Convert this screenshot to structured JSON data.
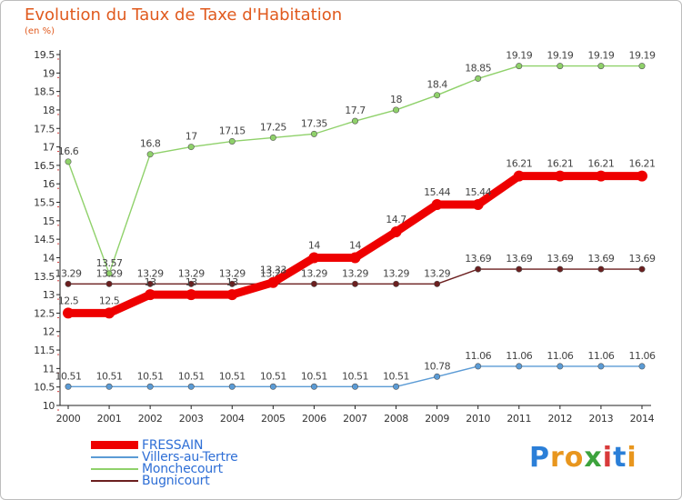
{
  "header": {
    "title": "Evolution du Taux de Taxe d'Habitation",
    "unit": "(en %)"
  },
  "logo": {
    "text": "Proxiti",
    "letters": [
      "P",
      "r",
      "o",
      "x",
      "i",
      "t",
      "i"
    ],
    "colors": [
      "#2b7fd8",
      "#e8961e",
      "#e8961e",
      "#3da33d",
      "#d83a3a",
      "#2b7fd8",
      "#e8961e"
    ]
  },
  "chart_data": {
    "type": "line",
    "title": "Evolution du Taux de Taxe d'Habitation",
    "ylabel": "(en %)",
    "xlabel": "",
    "x": [
      "2000",
      "2001",
      "2002",
      "2003",
      "2004",
      "2005",
      "2006",
      "2007",
      "2008",
      "2009",
      "2010",
      "2011",
      "2012",
      "2013",
      "2014"
    ],
    "ylim": [
      10,
      19.5
    ],
    "yticks": [
      "10",
      "10.5",
      "11",
      "11.5",
      "12",
      "12.5",
      "13",
      "13.5",
      "14",
      "14.5",
      "15",
      "15.5",
      "16",
      "16.5",
      "17",
      "17.5",
      "18",
      "18.5",
      "19",
      "19.5"
    ],
    "grid": false,
    "legend": "bottom-left",
    "series": [
      {
        "name": "Villers-au-Tertre",
        "color": "#5b9bd5",
        "values": [
          10.51,
          10.51,
          10.51,
          10.51,
          10.51,
          10.51,
          10.51,
          10.51,
          10.51,
          10.78,
          11.06,
          11.06,
          11.06,
          11.06,
          11.06
        ],
        "labels": [
          "10.51",
          "10.51",
          "10.51",
          "10.51",
          "10.51",
          "10.51",
          "10.51",
          "10.51",
          "10.51",
          "10.78",
          "11.06",
          "11.06",
          "11.06",
          "11.06",
          "11.06"
        ]
      },
      {
        "name": "Monchecourt",
        "color": "#8fd16a",
        "values": [
          16.6,
          13.57,
          16.8,
          17,
          17.15,
          17.25,
          17.35,
          17.7,
          18,
          18.4,
          18.85,
          19.19,
          19.19,
          19.19,
          19.19
        ],
        "labels": [
          "16.6",
          "13.57",
          "16.8",
          "17",
          "17.15",
          "17.25",
          "17.35",
          "17.7",
          "18",
          "18.4",
          "18.85",
          "19.19",
          "19.19",
          "19.19",
          "19.19"
        ]
      },
      {
        "name": "Bugnicourt",
        "color": "#6b1f1f",
        "values": [
          13.29,
          13.29,
          13.29,
          13.29,
          13.29,
          13.29,
          13.29,
          13.29,
          13.29,
          13.29,
          13.69,
          13.69,
          13.69,
          13.69,
          13.69
        ],
        "labels": [
          "13.29",
          "13.29",
          "13.29",
          "13.29",
          "13.29",
          "13.29",
          "13.29",
          "13.29",
          "13.29",
          "13.29",
          "13.69",
          "13.69",
          "13.69",
          "13.69",
          "13.69"
        ]
      },
      {
        "name": "FRESSAIN",
        "color": "#ee0000",
        "values": [
          12.5,
          12.5,
          13,
          13,
          13,
          13.33,
          14,
          14,
          14.7,
          15.44,
          15.44,
          16.21,
          16.21,
          16.21,
          16.21
        ],
        "labels": [
          "12.5",
          "12.5",
          "13",
          "13",
          "13",
          "13.33",
          "14",
          "14",
          "14.7",
          "15.44",
          "15.44",
          "16.21",
          "16.21",
          "16.21",
          "16.21"
        ]
      }
    ]
  },
  "legend": {
    "items": [
      {
        "label": "FRESSAIN",
        "color": "#ee0000"
      },
      {
        "label": "Villers-au-Tertre",
        "color": "#5b9bd5"
      },
      {
        "label": "Monchecourt",
        "color": "#8fd16a"
      },
      {
        "label": "Bugnicourt",
        "color": "#6b1f1f"
      }
    ]
  }
}
